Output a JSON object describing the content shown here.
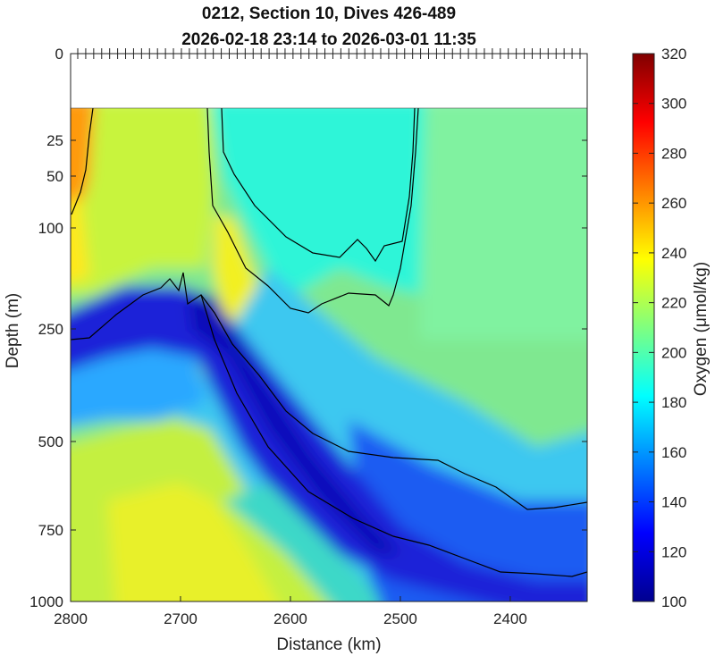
{
  "chart_data": {
    "type": "heatmap",
    "title": "0212, Section 10, Dives 426-489",
    "subtitle": "2026-02-18 23:14 to 2026-03-01 11:35",
    "xlabel": "Distance (km)",
    "ylabel": "Depth (m)",
    "colorbar_label": "Oxygen (μmol/kg)",
    "x_range": [
      2800,
      2330
    ],
    "x_ticks": [
      2800,
      2700,
      2600,
      2500,
      2400
    ],
    "y_ticks_shown": [
      0,
      25,
      50,
      100,
      250,
      500,
      750,
      1000
    ],
    "y_axis_scale": "nonlinear (stretched near surface)",
    "y_data_start_depth": 10,
    "colorbar_range": [
      100,
      320
    ],
    "colorbar_ticks": [
      100,
      120,
      140,
      160,
      180,
      200,
      220,
      240,
      260,
      280,
      300,
      320
    ],
    "colormap": "jet",
    "grid": false,
    "contours_color": "#000000",
    "field_description_points": [
      {
        "x": 2795,
        "depth": 30,
        "value": 270
      },
      {
        "x": 2760,
        "depth": 100,
        "value": 225
      },
      {
        "x": 2700,
        "depth": 60,
        "value": 232
      },
      {
        "x": 2640,
        "depth": 200,
        "value": 238
      },
      {
        "x": 2600,
        "depth": 60,
        "value": 190
      },
      {
        "x": 2420,
        "depth": 80,
        "value": 205
      },
      {
        "x": 2750,
        "depth": 250,
        "value": 130
      },
      {
        "x": 2660,
        "depth": 400,
        "value": 115
      },
      {
        "x": 2580,
        "depth": 600,
        "value": 120
      },
      {
        "x": 2450,
        "depth": 500,
        "value": 175
      },
      {
        "x": 2380,
        "depth": 750,
        "value": 155
      },
      {
        "x": 2700,
        "depth": 750,
        "value": 230
      },
      {
        "x": 2720,
        "depth": 1000,
        "value": 240
      }
    ]
  }
}
